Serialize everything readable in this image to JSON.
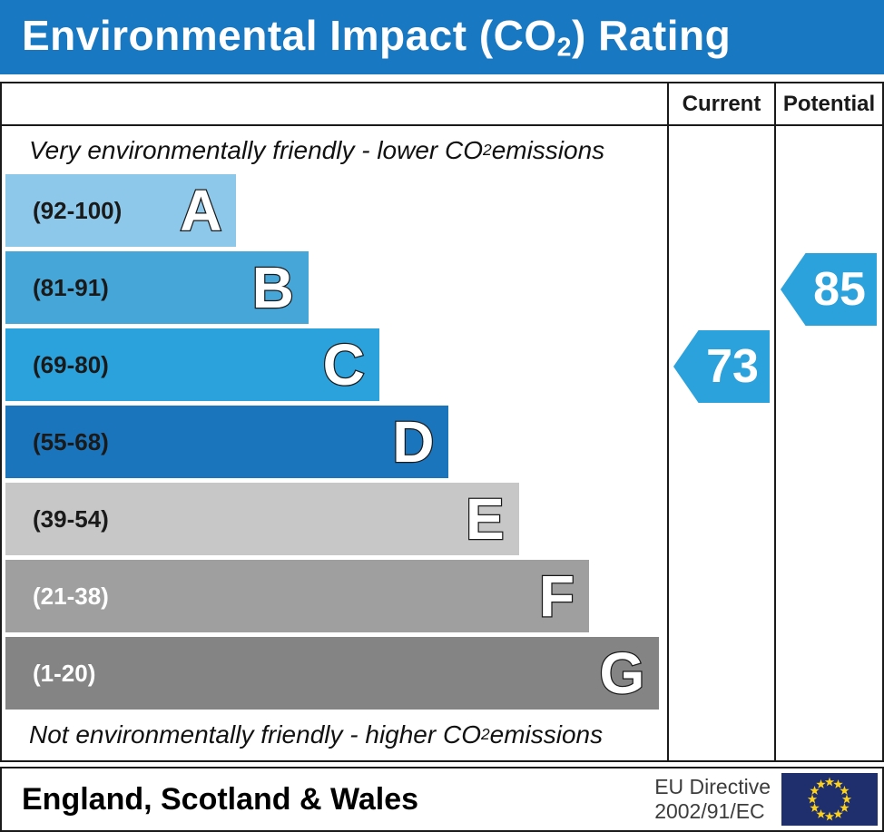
{
  "title": {
    "prefix": "Environmental Impact (CO",
    "sub": "2",
    "suffix": ") Rating"
  },
  "columns": {
    "current": "Current",
    "potential": "Potential"
  },
  "notes": {
    "top": {
      "prefix": "Very environmentally friendly - lower CO",
      "sub": "2",
      "suffix": " emissions"
    },
    "bottom": {
      "prefix": "Not environmentally friendly - higher CO",
      "sub": "2",
      "suffix": " emissions"
    }
  },
  "bands": [
    {
      "letter": "A",
      "range": "(92-100)",
      "color": "#8dc8ea",
      "range_color": "#1a1a1a",
      "width_pct": 34.9
    },
    {
      "letter": "B",
      "range": "(81-91)",
      "color": "#47a6d8",
      "range_color": "#1a1a1a",
      "width_pct": 45.8
    },
    {
      "letter": "C",
      "range": "(69-80)",
      "color": "#2ba2dc",
      "range_color": "#1a1a1a",
      "width_pct": 56.5
    },
    {
      "letter": "D",
      "range": "(55-68)",
      "color": "#1b75bd",
      "range_color": "#1a1a1a",
      "width_pct": 67.0
    },
    {
      "letter": "E",
      "range": "(39-54)",
      "color": "#c7c7c7",
      "range_color": "#1a1a1a",
      "width_pct": 77.6
    },
    {
      "letter": "F",
      "range": "(21-38)",
      "color": "#9f9f9f",
      "range_color": "#ffffff",
      "width_pct": 88.2
    },
    {
      "letter": "G",
      "range": "(1-20)",
      "color": "#848484",
      "range_color": "#ffffff",
      "width_pct": 98.8
    }
  ],
  "ratings": {
    "current": {
      "value": "73",
      "band": "C",
      "color": "#2ba2dc"
    },
    "potential": {
      "value": "85",
      "band": "B",
      "color": "#2ba2dc"
    }
  },
  "footer": {
    "region": "England, Scotland & Wales",
    "directive_line1": "EU Directive",
    "directive_line2": "2002/91/EC",
    "flag_icon": "eu-flag",
    "flag_bg": "#1f2f6e",
    "flag_star_color": "#fcd11e"
  },
  "colors": {
    "header_bg": "#1878c2",
    "header_text": "#ffffff",
    "border": "#1a1a1a"
  },
  "chart_data": {
    "type": "bar",
    "title": "Environmental Impact (CO2) Rating",
    "categories": [
      "A",
      "B",
      "C",
      "D",
      "E",
      "F",
      "G"
    ],
    "band_ranges": [
      "92-100",
      "81-91",
      "69-80",
      "55-68",
      "39-54",
      "21-38",
      "1-20"
    ],
    "bar_lengths_pct_of_width": [
      35,
      46,
      57,
      67,
      78,
      88,
      99
    ],
    "band_colors": [
      "#8dc8ea",
      "#47a6d8",
      "#2ba2dc",
      "#1b75bd",
      "#c7c7c7",
      "#9f9f9f",
      "#848484"
    ],
    "current_rating": 73,
    "current_band": "C",
    "potential_rating": 85,
    "potential_band": "B",
    "top_annotation": "Very environmentally friendly - lower CO2 emissions",
    "bottom_annotation": "Not environmentally friendly - higher CO2 emissions",
    "region_label": "England, Scotland & Wales",
    "directive": "EU Directive 2002/91/EC",
    "columns": [
      "Current",
      "Potential"
    ],
    "grid": false,
    "legend_position": "none"
  }
}
